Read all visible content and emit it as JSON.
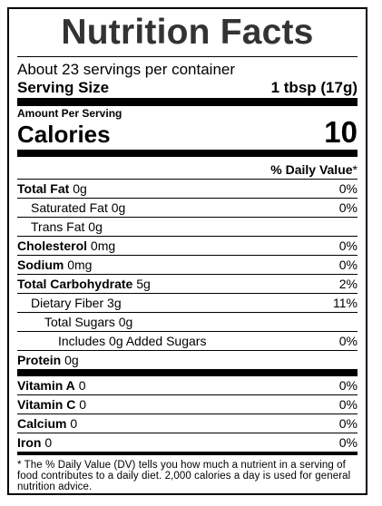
{
  "label": {
    "title": "Nutrition Facts",
    "servings_per_container": "About 23 servings per container",
    "serving_size_label": "Serving Size",
    "serving_size_value": "1 tbsp (17g)",
    "amount_per_serving": "Amount Per Serving",
    "calories_label": "Calories",
    "calories_value": "10",
    "daily_value_header": "% Daily Value",
    "daily_value_asterisk": "*"
  },
  "nutrients": [
    {
      "name": "Total Fat",
      "amount": "0g",
      "dv": "0%"
    },
    {
      "name": "Saturated Fat",
      "amount": "0g",
      "dv": "0%"
    },
    {
      "name": "Trans Fat",
      "amount": "0g",
      "dv": ""
    },
    {
      "name": "Cholesterol",
      "amount": "0mg",
      "dv": "0%"
    },
    {
      "name": "Sodium",
      "amount": "0mg",
      "dv": "0%"
    },
    {
      "name": "Total Carbohydrate",
      "amount": "5g",
      "dv": "2%"
    },
    {
      "name": "Dietary Fiber",
      "amount": "3g",
      "dv": "11%"
    },
    {
      "name": "Total Sugars",
      "amount": "0g",
      "dv": ""
    },
    {
      "name": "Includes 0g Added Sugars",
      "amount": "",
      "dv": "0%"
    },
    {
      "name": "Protein",
      "amount": "0g",
      "dv": ""
    }
  ],
  "vitamins": [
    {
      "name": "Vitamin A",
      "amount": "0",
      "dv": "0%"
    },
    {
      "name": "Vitamin C",
      "amount": "0",
      "dv": "0%"
    },
    {
      "name": "Calcium",
      "amount": "0",
      "dv": "0%"
    },
    {
      "name": "Iron",
      "amount": "0",
      "dv": "0%"
    }
  ],
  "footnote": "* The % Daily Value (DV) tells you how much a nutrient in a serving of food contributes to a daily diet. 2,000 calories a day is used for general nutrition advice."
}
